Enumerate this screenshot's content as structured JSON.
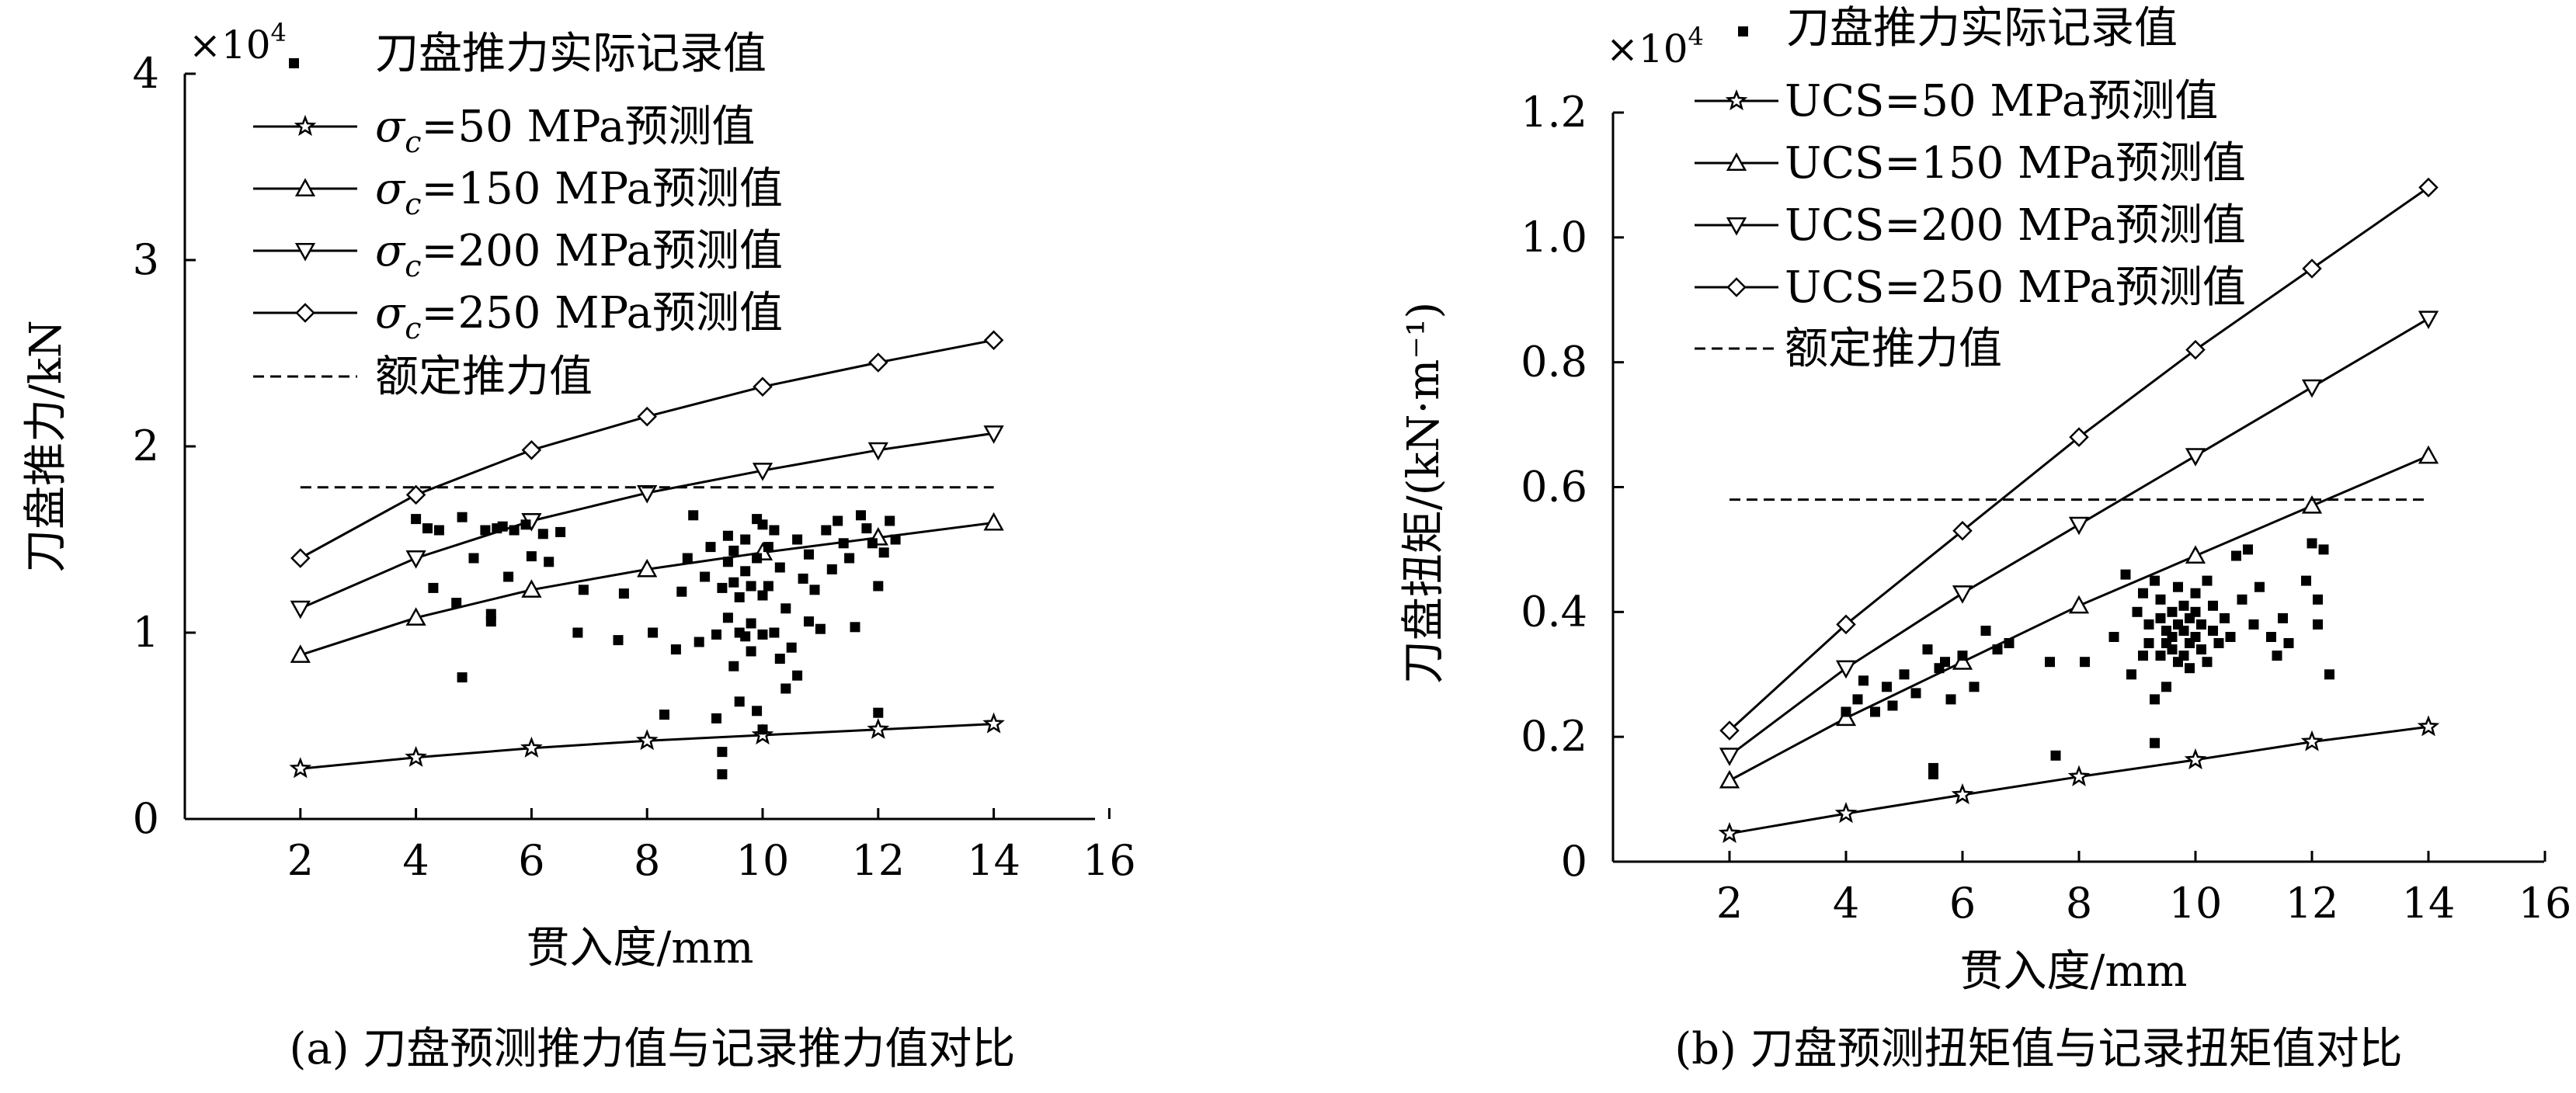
{
  "chart_data": [
    {
      "id": "a",
      "type": "scatter",
      "caption": "(a) 刀盘预测推力值与记录推力值对比",
      "xlabel": "贯入度/mm",
      "ylabel": "刀盘推力/kN",
      "scale_label": "×10",
      "scale_exp": "4",
      "xlim": [
        0,
        16
      ],
      "ylim": [
        0,
        4
      ],
      "xticks": [
        "2",
        "4",
        "6",
        "8",
        "10",
        "12",
        "14",
        "16"
      ],
      "yticks": [
        "0",
        "1",
        "2",
        "3",
        "4"
      ],
      "x": [
        2,
        4,
        6,
        8,
        10,
        12,
        14
      ],
      "series": [
        {
          "name_prefix": "σ",
          "name_sub": "c",
          "name_suffix": "=50 MPa预测值",
          "marker": "star",
          "values": [
            0.27,
            0.33,
            0.38,
            0.42,
            0.45,
            0.48,
            0.51
          ]
        },
        {
          "name_prefix": "σ",
          "name_sub": "c",
          "name_suffix": "=150 MPa预测值",
          "marker": "triangle-up",
          "values": [
            0.88,
            1.08,
            1.23,
            1.34,
            1.43,
            1.51,
            1.59
          ]
        },
        {
          "name_prefix": "σ",
          "name_sub": "c",
          "name_suffix": "=200 MPa预测值",
          "marker": "triangle-down",
          "values": [
            1.13,
            1.4,
            1.6,
            1.75,
            1.87,
            1.98,
            2.07
          ]
        },
        {
          "name_prefix": "σ",
          "name_sub": "c",
          "name_suffix": "=250 MPa预测值",
          "marker": "diamond",
          "values": [
            1.4,
            1.74,
            1.98,
            2.16,
            2.32,
            2.45,
            2.57
          ]
        }
      ],
      "scatter_name": "刀盘推力实际记录值",
      "rated_name": "额定推力值",
      "rated_value": 1.78,
      "rated_x": [
        2,
        14
      ],
      "scatter": [
        [
          4.0,
          1.61
        ],
        [
          4.2,
          1.56
        ],
        [
          4.3,
          1.24
        ],
        [
          4.4,
          1.55
        ],
        [
          4.7,
          1.16
        ],
        [
          4.8,
          1.62
        ],
        [
          4.8,
          0.76
        ],
        [
          5.0,
          1.4
        ],
        [
          5.2,
          1.55
        ],
        [
          5.3,
          1.1
        ],
        [
          5.3,
          1.06
        ],
        [
          5.4,
          1.56
        ],
        [
          5.5,
          1.57
        ],
        [
          5.6,
          1.3
        ],
        [
          5.7,
          1.55
        ],
        [
          5.9,
          1.58
        ],
        [
          6.0,
          1.41
        ],
        [
          6.2,
          1.53
        ],
        [
          6.3,
          1.38
        ],
        [
          6.5,
          1.54
        ],
        [
          6.8,
          1.0
        ],
        [
          6.9,
          1.23
        ],
        [
          7.5,
          0.96
        ],
        [
          7.6,
          1.21
        ],
        [
          8.1,
          1.0
        ],
        [
          8.3,
          0.56
        ],
        [
          8.5,
          0.91
        ],
        [
          8.6,
          1.22
        ],
        [
          8.7,
          1.4
        ],
        [
          8.8,
          1.63
        ],
        [
          8.9,
          0.95
        ],
        [
          9.0,
          1.3
        ],
        [
          9.1,
          1.46
        ],
        [
          9.2,
          0.99
        ],
        [
          9.2,
          0.54
        ],
        [
          9.3,
          1.24
        ],
        [
          9.3,
          0.36
        ],
        [
          9.3,
          0.24
        ],
        [
          9.4,
          1.52
        ],
        [
          9.4,
          1.38
        ],
        [
          9.4,
          1.08
        ],
        [
          9.5,
          0.82
        ],
        [
          9.5,
          1.27
        ],
        [
          9.5,
          1.44
        ],
        [
          9.6,
          1.0
        ],
        [
          9.6,
          0.63
        ],
        [
          9.6,
          1.19
        ],
        [
          9.7,
          1.33
        ],
        [
          9.7,
          0.98
        ],
        [
          9.7,
          1.5
        ],
        [
          9.8,
          1.05
        ],
        [
          9.8,
          1.25
        ],
        [
          9.8,
          0.9
        ],
        [
          9.9,
          1.61
        ],
        [
          9.9,
          0.58
        ],
        [
          9.9,
          1.4
        ],
        [
          10.0,
          1.58
        ],
        [
          10.0,
          1.2
        ],
        [
          10.0,
          0.99
        ],
        [
          10.0,
          0.48
        ],
        [
          10.1,
          1.46
        ],
        [
          10.1,
          1.25
        ],
        [
          10.2,
          1.0
        ],
        [
          10.2,
          1.55
        ],
        [
          10.3,
          0.86
        ],
        [
          10.3,
          1.35
        ],
        [
          10.4,
          0.7
        ],
        [
          10.4,
          1.13
        ],
        [
          10.5,
          0.92
        ],
        [
          10.6,
          1.5
        ],
        [
          10.6,
          0.77
        ],
        [
          10.7,
          1.29
        ],
        [
          10.8,
          1.06
        ],
        [
          10.8,
          1.42
        ],
        [
          10.9,
          1.23
        ],
        [
          11.0,
          1.02
        ],
        [
          11.1,
          1.55
        ],
        [
          11.2,
          1.34
        ],
        [
          11.3,
          1.6
        ],
        [
          11.4,
          1.48
        ],
        [
          11.5,
          1.4
        ],
        [
          11.6,
          1.03
        ],
        [
          11.7,
          1.63
        ],
        [
          11.8,
          1.56
        ],
        [
          11.9,
          1.48
        ],
        [
          12.0,
          1.25
        ],
        [
          12.0,
          0.57
        ],
        [
          12.1,
          1.43
        ],
        [
          12.2,
          1.6
        ],
        [
          12.3,
          1.5
        ]
      ]
    },
    {
      "id": "b",
      "type": "scatter",
      "caption": "(b) 刀盘预测扭矩值与记录扭矩值对比",
      "xlabel": "贯入度/mm",
      "ylabel": "刀盘扭矩/(kN·m⁻¹)",
      "scale_label": "×10",
      "scale_exp": "4",
      "xlim": [
        0,
        16
      ],
      "ylim": [
        0,
        1.2
      ],
      "xticks": [
        "2",
        "4",
        "6",
        "8",
        "10",
        "12",
        "14",
        "16"
      ],
      "yticks": [
        "0",
        "0.2",
        "0.4",
        "0.6",
        "0.8",
        "1.0",
        "1.2"
      ],
      "x": [
        2,
        4,
        6,
        8,
        10,
        12,
        14
      ],
      "series": [
        {
          "name_prefix": "",
          "name_sub": "",
          "name_suffix": "UCS=50 MPa预测值",
          "marker": "star",
          "values": [
            0.045,
            0.077,
            0.107,
            0.136,
            0.163,
            0.192,
            0.216
          ]
        },
        {
          "name_prefix": "",
          "name_sub": "",
          "name_suffix": "UCS=150 MPa预测值",
          "marker": "triangle-up",
          "values": [
            0.13,
            0.23,
            0.32,
            0.41,
            0.49,
            0.57,
            0.65
          ]
        },
        {
          "name_prefix": "",
          "name_sub": "",
          "name_suffix": "UCS=200 MPa预测值",
          "marker": "triangle-down",
          "values": [
            0.17,
            0.31,
            0.43,
            0.54,
            0.65,
            0.76,
            0.87
          ]
        },
        {
          "name_prefix": "",
          "name_sub": "",
          "name_suffix": "UCS=250 MPa预测值",
          "marker": "diamond",
          "values": [
            0.21,
            0.38,
            0.53,
            0.68,
            0.82,
            0.95,
            1.08
          ]
        }
      ],
      "scatter_name": "刀盘推力实际记录值",
      "rated_name": "额定推力值",
      "rated_value": 0.58,
      "rated_x": [
        2,
        14
      ],
      "scatter": [
        [
          4.0,
          0.24
        ],
        [
          4.2,
          0.26
        ],
        [
          4.3,
          0.29
        ],
        [
          4.5,
          0.24
        ],
        [
          4.7,
          0.28
        ],
        [
          4.8,
          0.25
        ],
        [
          5.0,
          0.3
        ],
        [
          5.2,
          0.27
        ],
        [
          5.4,
          0.34
        ],
        [
          5.5,
          0.15
        ],
        [
          5.5,
          0.14
        ],
        [
          5.6,
          0.31
        ],
        [
          5.7,
          0.32
        ],
        [
          5.8,
          0.26
        ],
        [
          6.0,
          0.33
        ],
        [
          6.2,
          0.28
        ],
        [
          6.4,
          0.37
        ],
        [
          6.6,
          0.34
        ],
        [
          6.8,
          0.35
        ],
        [
          7.5,
          0.32
        ],
        [
          7.6,
          0.17
        ],
        [
          8.1,
          0.32
        ],
        [
          8.6,
          0.36
        ],
        [
          8.8,
          0.46
        ],
        [
          8.9,
          0.3
        ],
        [
          9.0,
          0.4
        ],
        [
          9.1,
          0.43
        ],
        [
          9.1,
          0.33
        ],
        [
          9.2,
          0.38
        ],
        [
          9.2,
          0.35
        ],
        [
          9.3,
          0.45
        ],
        [
          9.3,
          0.26
        ],
        [
          9.3,
          0.19
        ],
        [
          9.4,
          0.39
        ],
        [
          9.4,
          0.33
        ],
        [
          9.4,
          0.42
        ],
        [
          9.5,
          0.37
        ],
        [
          9.5,
          0.35
        ],
        [
          9.5,
          0.28
        ],
        [
          9.6,
          0.4
        ],
        [
          9.6,
          0.36
        ],
        [
          9.6,
          0.34
        ],
        [
          9.7,
          0.44
        ],
        [
          9.7,
          0.38
        ],
        [
          9.7,
          0.32
        ],
        [
          9.8,
          0.41
        ],
        [
          9.8,
          0.37
        ],
        [
          9.8,
          0.33
        ],
        [
          9.9,
          0.39
        ],
        [
          9.9,
          0.35
        ],
        [
          9.9,
          0.31
        ],
        [
          10.0,
          0.43
        ],
        [
          10.0,
          0.4
        ],
        [
          10.0,
          0.36
        ],
        [
          10.1,
          0.38
        ],
        [
          10.1,
          0.34
        ],
        [
          10.2,
          0.45
        ],
        [
          10.2,
          0.32
        ],
        [
          10.3,
          0.41
        ],
        [
          10.3,
          0.37
        ],
        [
          10.4,
          0.35
        ],
        [
          10.5,
          0.39
        ],
        [
          10.6,
          0.36
        ],
        [
          10.7,
          0.49
        ],
        [
          10.8,
          0.42
        ],
        [
          10.9,
          0.5
        ],
        [
          11.0,
          0.38
        ],
        [
          11.1,
          0.44
        ],
        [
          11.3,
          0.36
        ],
        [
          11.4,
          0.33
        ],
        [
          11.5,
          0.39
        ],
        [
          11.6,
          0.35
        ],
        [
          11.9,
          0.45
        ],
        [
          12.0,
          0.51
        ],
        [
          12.1,
          0.42
        ],
        [
          12.2,
          0.5
        ],
        [
          12.3,
          0.3
        ],
        [
          12.1,
          0.38
        ]
      ]
    }
  ]
}
